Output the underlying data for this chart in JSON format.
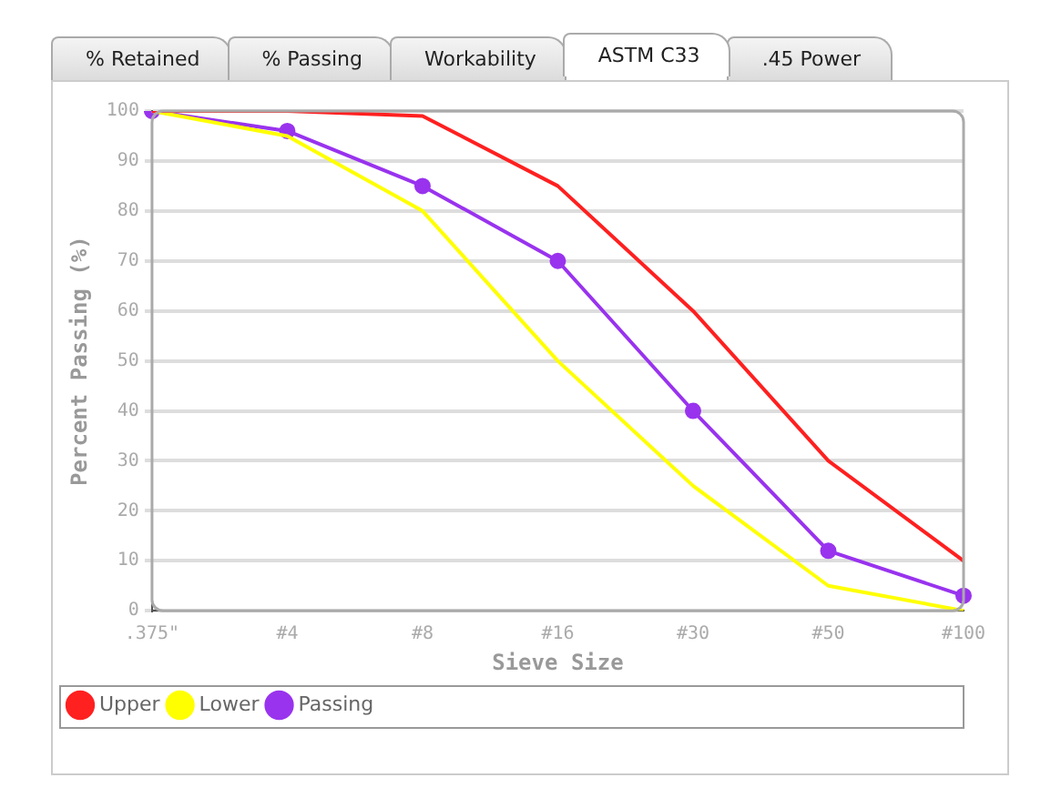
{
  "chart_data": {
    "type": "line",
    "xlabel": "Sieve Size",
    "ylabel": "Percent Passing (%)",
    "annotations": [
      "% Retained",
      "% Passing",
      "Workability",
      "ASTM C33",
      ".45 Power"
    ],
    "categories": [
      ".375\"",
      "#4",
      "#8",
      "#16",
      "#30",
      "#50",
      "#100"
    ],
    "series": [
      {
        "name": "Upper",
        "color": "#ff2020",
        "values": [
          100,
          100,
          99,
          85,
          60,
          30,
          10
        ],
        "marker": "none"
      },
      {
        "name": "Lower",
        "color": "#ffff00",
        "values": [
          100,
          95,
          80,
          50,
          25,
          5,
          0
        ],
        "marker": "none"
      },
      {
        "name": "Passing",
        "color": "#9933ee",
        "values": [
          100,
          96,
          85,
          70,
          40,
          12,
          3
        ],
        "marker": "circle"
      }
    ],
    "ylim": [
      0,
      100
    ],
    "yticks": [
      0,
      10,
      20,
      30,
      40,
      50,
      60,
      70,
      80,
      90,
      100
    ],
    "grid": "y",
    "legend": "bottom",
    "line_style": "solid"
  }
}
